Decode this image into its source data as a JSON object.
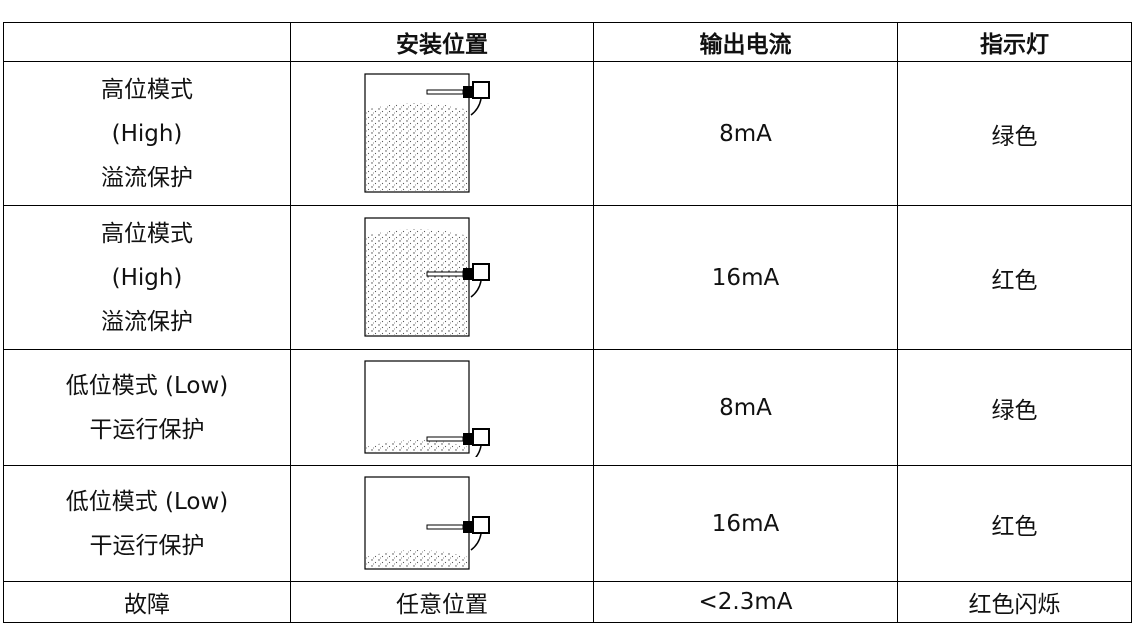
{
  "table": {
    "header": [
      "",
      "安装位置",
      "输出电流",
      "指示灯"
    ],
    "rows": [
      [
        [
          "高位模式",
          "(High)",
          "溢流保护"
        ],
        null,
        "8mA",
        "绿色"
      ],
      [
        [
          "高位模式",
          "(High)",
          "溢流保护"
        ],
        null,
        "16mA",
        "红色"
      ],
      [
        [
          "低位模式 (Low)",
          "干运行保护"
        ],
        null,
        "8mA",
        "绿色"
      ],
      [
        [
          "低位模式 (Low)",
          "干运行保护"
        ],
        null,
        "16mA",
        "红色"
      ],
      [
        [
          "故障"
        ],
        "任意位置",
        "<2.3mA",
        "红色闪烁"
      ]
    ]
  }
}
